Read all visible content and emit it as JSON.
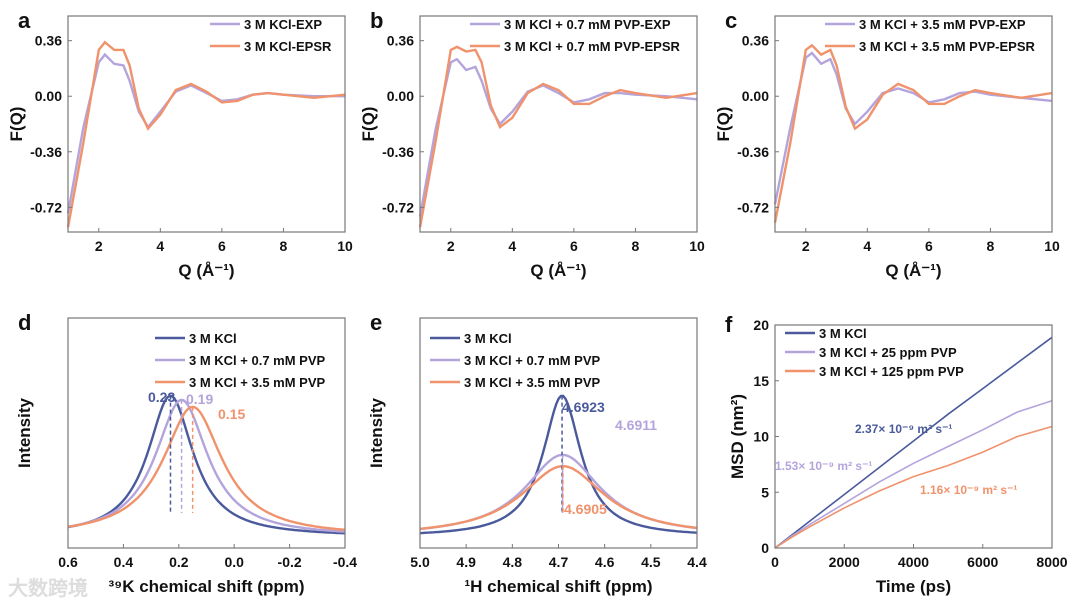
{
  "colors": {
    "blue": "#4a5a9c",
    "purple": "#b4a4dc",
    "orange": "#f0926c",
    "axis": "#777777",
    "text": "#111111"
  },
  "watermark": "大数跨境",
  "chart_data": [
    {
      "panel": "a",
      "type": "line",
      "xlabel": "Q (Å⁻¹)",
      "ylabel": "F(Q)",
      "xlim": [
        1,
        10
      ],
      "ylim": [
        -0.88,
        0.52
      ],
      "xticks": [
        2,
        4,
        6,
        8,
        10
      ],
      "yticks": [
        0.36,
        0.0,
        -0.36,
        -0.72
      ],
      "x": [
        1,
        1.5,
        2,
        2.2,
        2.5,
        2.8,
        3,
        3.3,
        3.6,
        4,
        4.5,
        5,
        5.5,
        6,
        6.5,
        7,
        7.5,
        8,
        9,
        10
      ],
      "series": [
        {
          "name": "3 M KCl-EXP",
          "color": "purple",
          "values": [
            -0.76,
            -0.2,
            0.22,
            0.27,
            0.21,
            0.2,
            0.1,
            -0.1,
            -0.2,
            -0.1,
            0.03,
            0.07,
            0.02,
            -0.03,
            -0.02,
            0.01,
            0.02,
            0.01,
            0,
            0
          ]
        },
        {
          "name": "3 M KCl-EPSR",
          "color": "orange",
          "values": [
            -0.85,
            -0.3,
            0.3,
            0.35,
            0.3,
            0.3,
            0.2,
            -0.08,
            -0.21,
            -0.12,
            0.04,
            0.08,
            0.03,
            -0.04,
            -0.03,
            0.01,
            0.02,
            0.01,
            -0.01,
            0.01
          ]
        }
      ]
    },
    {
      "panel": "b",
      "type": "line",
      "xlabel": "Q (Å⁻¹)",
      "ylabel": "F(Q)",
      "xlim": [
        1,
        10
      ],
      "ylim": [
        -0.88,
        0.52
      ],
      "xticks": [
        2,
        4,
        6,
        8,
        10
      ],
      "yticks": [
        0.36,
        0.0,
        -0.36,
        -0.72
      ],
      "x": [
        1,
        1.5,
        2,
        2.2,
        2.5,
        2.8,
        3,
        3.3,
        3.6,
        4,
        4.5,
        5,
        5.5,
        6,
        6.5,
        7,
        7.5,
        8,
        9,
        10
      ],
      "series": [
        {
          "name": "3 M KCl + 0.7 mM PVP-EXP",
          "color": "purple",
          "values": [
            -0.78,
            -0.22,
            0.22,
            0.24,
            0.17,
            0.19,
            0.1,
            -0.08,
            -0.18,
            -0.1,
            0.03,
            0.07,
            0.02,
            -0.04,
            -0.02,
            0.02,
            0.02,
            0.01,
            0,
            -0.02
          ]
        },
        {
          "name": "3 M KCl + 0.7 mM PVP-EPSR",
          "color": "orange",
          "values": [
            -0.85,
            -0.3,
            0.3,
            0.32,
            0.29,
            0.3,
            0.22,
            -0.06,
            -0.2,
            -0.14,
            0.02,
            0.08,
            0.04,
            -0.05,
            -0.05,
            0.0,
            0.04,
            0.02,
            -0.01,
            0.02
          ]
        }
      ]
    },
    {
      "panel": "c",
      "type": "line",
      "xlabel": "Q (Å⁻¹)",
      "ylabel": "F(Q)",
      "xlim": [
        1,
        10
      ],
      "ylim": [
        -0.88,
        0.52
      ],
      "xticks": [
        2,
        4,
        6,
        8,
        10
      ],
      "yticks": [
        0.36,
        0.0,
        -0.36,
        -0.72
      ],
      "x": [
        1,
        1.5,
        2,
        2.2,
        2.5,
        2.8,
        3,
        3.3,
        3.6,
        4,
        4.5,
        5,
        5.5,
        6,
        6.5,
        7,
        7.5,
        8,
        9,
        10
      ],
      "series": [
        {
          "name": "3 M KCl + 3.5 mM PVP-EXP",
          "color": "purple",
          "values": [
            -0.7,
            -0.2,
            0.25,
            0.28,
            0.21,
            0.24,
            0.14,
            -0.08,
            -0.18,
            -0.1,
            0.02,
            0.05,
            0.02,
            -0.04,
            -0.02,
            0.02,
            0.03,
            0.01,
            -0.01,
            -0.03
          ]
        },
        {
          "name": "3 M KCl + 3.5 mM PVP-EPSR",
          "color": "orange",
          "values": [
            -0.82,
            -0.3,
            0.3,
            0.33,
            0.27,
            0.3,
            0.2,
            -0.07,
            -0.21,
            -0.15,
            0.01,
            0.08,
            0.04,
            -0.05,
            -0.05,
            0.0,
            0.04,
            0.02,
            -0.01,
            0.02
          ]
        }
      ]
    },
    {
      "panel": "d",
      "type": "line",
      "xlabel": "³⁹K chemical shift (ppm)",
      "ylabel": "Intensity",
      "xlim": [
        0.6,
        -0.4
      ],
      "xticks": [
        0.6,
        0.4,
        0.2,
        0.0,
        -0.2,
        -0.4
      ],
      "yticks": [],
      "peaks": [
        {
          "name": "3 M KCl",
          "color": "blue",
          "center": 0.23,
          "height": 1.0,
          "width": 0.2,
          "label": "0.23"
        },
        {
          "name": "3 M KCl + 0.7 mM PVP",
          "color": "purple",
          "center": 0.19,
          "height": 0.97,
          "width": 0.23,
          "label": "0.19"
        },
        {
          "name": "3 M KCl + 3.5 mM PVP",
          "color": "orange",
          "center": 0.15,
          "height": 0.92,
          "width": 0.26,
          "label": "0.15"
        }
      ]
    },
    {
      "panel": "e",
      "type": "line",
      "xlabel": "¹H chemical shift (ppm)",
      "ylabel": "Intensity",
      "xlim": [
        5.0,
        4.4
      ],
      "xticks": [
        5.0,
        4.9,
        4.8,
        4.7,
        4.6,
        4.5,
        4.4
      ],
      "yticks": [],
      "peaks": [
        {
          "name": "3 M KCl",
          "color": "blue",
          "center": 4.6923,
          "height": 1.0,
          "width": 0.1,
          "label": "4.6923"
        },
        {
          "name": "3 M KCl + 0.7 mM PVP",
          "color": "purple",
          "center": 4.6911,
          "height": 0.58,
          "width": 0.2,
          "label": "4.6911"
        },
        {
          "name": "3 M KCl + 3.5 mM PVP",
          "color": "orange",
          "center": 4.6905,
          "height": 0.5,
          "width": 0.22,
          "label": "4.6905"
        }
      ]
    },
    {
      "panel": "f",
      "type": "line",
      "xlabel": "Time (ps)",
      "ylabel": "MSD (nm²)",
      "xlim": [
        0,
        8000
      ],
      "ylim": [
        0,
        20
      ],
      "xticks": [
        0,
        2000,
        4000,
        6000,
        8000
      ],
      "yticks": [
        0,
        5,
        10,
        15,
        20
      ],
      "x": [
        0,
        500,
        1000,
        2000,
        3000,
        4000,
        5000,
        6000,
        7000,
        8000
      ],
      "series": [
        {
          "name": "3 M KCl",
          "color": "blue",
          "values": [
            0,
            1.2,
            2.4,
            4.8,
            7.2,
            9.6,
            12,
            14.3,
            16.6,
            18.9
          ],
          "annotation": "2.37× 10⁻⁹ m² s⁻¹"
        },
        {
          "name": "3 M KCl + 25 ppm PVP",
          "color": "purple",
          "values": [
            0,
            1.1,
            2.1,
            4.0,
            5.9,
            7.6,
            9.1,
            10.6,
            12.2,
            13.2
          ],
          "annotation": "1.53× 10⁻⁹ m² s⁻¹"
        },
        {
          "name": "3 M KCl + 125 ppm PVP",
          "color": "orange",
          "values": [
            0,
            1.0,
            1.9,
            3.6,
            5.1,
            6.4,
            7.4,
            8.6,
            10.0,
            10.9
          ],
          "annotation": "1.16× 10⁻⁹ m² s⁻¹"
        }
      ]
    }
  ]
}
